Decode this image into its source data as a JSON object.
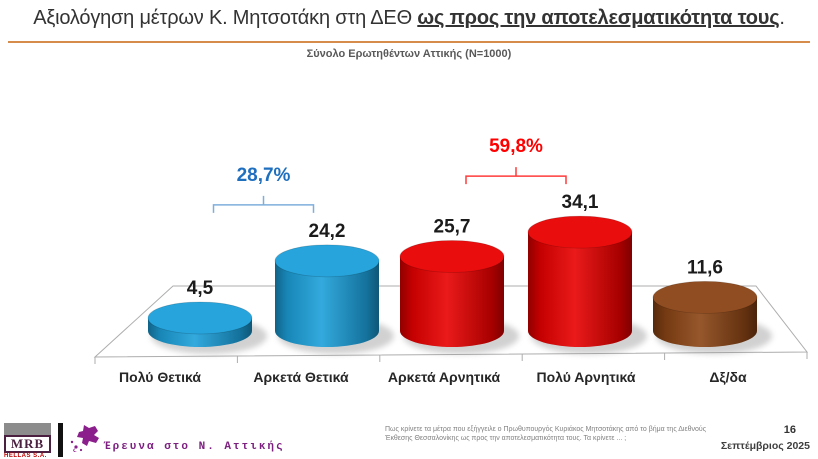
{
  "header": {
    "title_regular": "Αξιολόγηση μέτρων Κ. Μητσοτάκη στη ΔΕΘ ",
    "title_emphasis": "ως προς την αποτελεσματικότητα τους",
    "title_period": ".",
    "subtitle": "Σύνολο Ερωτηθέντων Αττικής (N=1000)",
    "rule_color": "#D68C4A"
  },
  "chart_data": {
    "type": "bar",
    "style": "3d-cylinder",
    "title": "Αξιολόγηση μέτρων Κ. Μητσοτάκη στη ΔΕΘ ως προς την αποτελεσματικότητα τους.",
    "subtitle": "Σύνολο Ερωτηθέντων Αττικής (N=1000)",
    "xlabel": "",
    "ylabel": "",
    "ylim": [
      0,
      40
    ],
    "grid": false,
    "legend": false,
    "categories": [
      "Πολύ Θετικά",
      "Αρκετά Θετικά",
      "Αρκετά Αρνητικά",
      "Πολύ Αρνητικά",
      "Δξ/δα"
    ],
    "values": [
      4.5,
      24.2,
      25.7,
      34.1,
      11.6
    ],
    "value_labels": [
      "4,5",
      "24,2",
      "25,7",
      "34,1",
      "11,6"
    ],
    "bar_colors": [
      "#1C9FD9",
      "#1C9FD9",
      "#E80000",
      "#E80000",
      "#8A4415"
    ],
    "value_label_color": "#1B1B1B",
    "category_label_color": "#262626",
    "groups": [
      {
        "label": "28,7%",
        "bars": [
          0,
          1
        ],
        "label_color": "#1F6FBF",
        "bracket_color": "#7FAEDC"
      },
      {
        "label": "59,8%",
        "bars": [
          2,
          3
        ],
        "label_color": "#FF0000",
        "bracket_color": "#FF3B3B"
      }
    ]
  },
  "footer": {
    "logo": {
      "brand": "MRB",
      "sub": "HELLAS S.A."
    },
    "survey_label": "Έρευνα στο Ν. Αττικής",
    "question_line1": "Πως κρίνετε τα μέτρα που εξήγγειλε ο Πρωθυπουργός Κυριάκος Μητσοτάκης από το βήμα της Διεθνούς",
    "question_line2": "Έκθεσης Θεσσαλονίκης ως προς την αποτελεσματικότητα τους. Τα κρίνετε ... ;",
    "page_number": "16",
    "date": "Σεπτέμβριος 2025"
  }
}
